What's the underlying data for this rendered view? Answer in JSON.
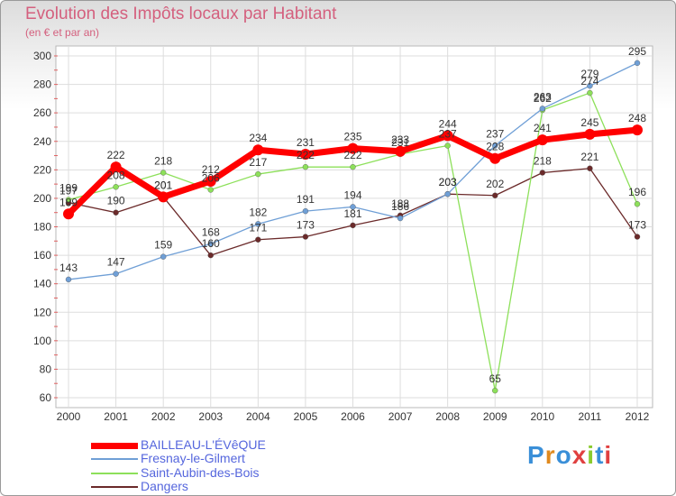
{
  "title": "Evolution des Impôts locaux par Habitant",
  "subtitle": "(en € et par an)",
  "brand": "Proxiti",
  "chart_data": {
    "type": "line",
    "title": "Evolution des Impôts locaux par Habitant",
    "subtitle": "(en € et par an)",
    "xlabel": "",
    "ylabel": "",
    "ylim": [
      60,
      300
    ],
    "y_ticks": [
      60,
      80,
      100,
      120,
      140,
      160,
      180,
      200,
      220,
      240,
      260,
      280,
      300
    ],
    "grid": true,
    "legend_position": "bottom-left",
    "categories": [
      "2000",
      "2001",
      "2002",
      "2003",
      "2004",
      "2005",
      "2006",
      "2007",
      "2008",
      "2009",
      "2010",
      "2011",
      "2012"
    ],
    "series": [
      {
        "name": "BAILLEAU-L'ÉVêQUE",
        "color": "#ff0000",
        "values": [
          189,
          222,
          201,
          212,
          234,
          231,
          235,
          233,
          244,
          228,
          241,
          245,
          248
        ],
        "labels": [
          "189",
          "222",
          "201",
          "212",
          "234",
          "231",
          "235",
          "233",
          "244",
          "228",
          "241",
          "245",
          "248"
        ]
      },
      {
        "name": "Fresnay-le-Gilmert",
        "color": "#6f9fd6",
        "values": [
          143,
          147,
          159,
          168,
          182,
          191,
          194,
          186,
          203,
          237,
          263,
          279,
          295
        ],
        "labels": [
          "143",
          "147",
          "159",
          "168",
          "182",
          "191",
          "194",
          "186",
          "203",
          "237",
          "263",
          "279",
          "295"
        ]
      },
      {
        "name": "Saint-Aubin-des-Bois",
        "color": "#8de05a",
        "values": [
          199,
          208,
          218,
          206,
          217,
          222,
          222,
          231,
          237,
          65,
          262,
          274,
          196
        ],
        "labels": [
          "199",
          "208",
          "218",
          "206",
          "217",
          "222",
          "222",
          "231",
          "237",
          "65",
          "262",
          "274",
          "196"
        ]
      },
      {
        "name": "Dangers",
        "color": "#6b2a2a",
        "values": [
          197,
          190,
          201,
          160,
          171,
          173,
          181,
          188,
          203,
          202,
          218,
          221,
          173
        ],
        "labels": [
          "197",
          "190",
          "201",
          "160",
          "171",
          "173",
          "181",
          "188",
          "203",
          "202",
          "218",
          "221",
          "173"
        ]
      }
    ]
  }
}
